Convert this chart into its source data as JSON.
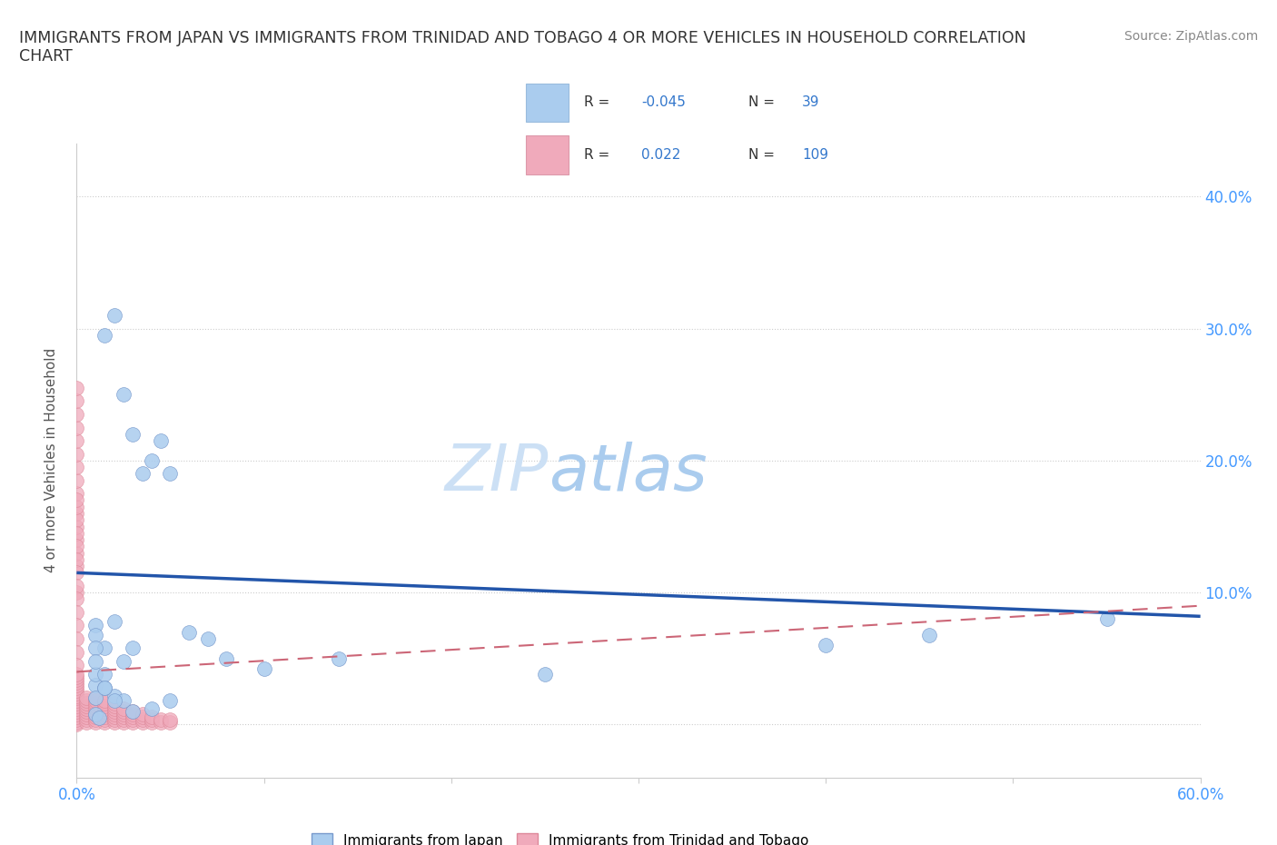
{
  "title": "IMMIGRANTS FROM JAPAN VS IMMIGRANTS FROM TRINIDAD AND TOBAGO 4 OR MORE VEHICLES IN HOUSEHOLD CORRELATION\nCHART",
  "source_text": "Source: ZipAtlas.com",
  "ylabel": "4 or more Vehicles in Household",
  "xlim": [
    0.0,
    0.6
  ],
  "ylim": [
    -0.04,
    0.44
  ],
  "R_japan": -0.045,
  "N_japan": 39,
  "R_tt": 0.022,
  "N_tt": 109,
  "color_japan": "#aaccee",
  "color_tt": "#f0aabb",
  "line_color_japan": "#2255aa",
  "line_color_tt": "#cc6677",
  "watermark_zip": "ZIP",
  "watermark_atlas": "atlas",
  "japan_x": [
    0.01,
    0.015,
    0.02,
    0.025,
    0.03,
    0.035,
    0.04,
    0.045,
    0.05,
    0.06,
    0.07,
    0.08,
    0.1,
    0.14,
    0.01,
    0.02,
    0.025,
    0.03,
    0.04,
    0.05,
    0.01,
    0.015,
    0.02,
    0.025,
    0.01,
    0.015,
    0.02,
    0.01,
    0.012,
    0.25,
    0.01,
    0.4,
    0.55,
    0.455,
    0.03,
    0.01,
    0.015,
    0.01,
    0.015
  ],
  "japan_y": [
    0.075,
    0.295,
    0.31,
    0.25,
    0.22,
    0.19,
    0.2,
    0.215,
    0.19,
    0.07,
    0.065,
    0.05,
    0.042,
    0.05,
    0.03,
    0.022,
    0.018,
    0.01,
    0.012,
    0.018,
    0.068,
    0.058,
    0.078,
    0.048,
    0.038,
    0.028,
    0.018,
    0.008,
    0.005,
    0.038,
    0.058,
    0.06,
    0.08,
    0.068,
    0.058,
    0.048,
    0.038,
    0.02,
    0.028
  ],
  "tt_x_raw": [
    0.0,
    0.0,
    0.0,
    0.0,
    0.0,
    0.0,
    0.0,
    0.0,
    0.0,
    0.0,
    0.0,
    0.0,
    0.0,
    0.0,
    0.0,
    0.0,
    0.0,
    0.0,
    0.0,
    0.0,
    0.005,
    0.005,
    0.005,
    0.005,
    0.005,
    0.005,
    0.005,
    0.005,
    0.005,
    0.005,
    0.01,
    0.01,
    0.01,
    0.01,
    0.01,
    0.01,
    0.01,
    0.01,
    0.01,
    0.01,
    0.015,
    0.015,
    0.015,
    0.015,
    0.015,
    0.015,
    0.015,
    0.015,
    0.015,
    0.02,
    0.02,
    0.02,
    0.02,
    0.02,
    0.02,
    0.02,
    0.02,
    0.025,
    0.025,
    0.025,
    0.025,
    0.025,
    0.025,
    0.03,
    0.03,
    0.03,
    0.03,
    0.03,
    0.035,
    0.035,
    0.035,
    0.035,
    0.04,
    0.04,
    0.04,
    0.045,
    0.045,
    0.05,
    0.05,
    0.0,
    0.0,
    0.0,
    0.0,
    0.0,
    0.0,
    0.0,
    0.0,
    0.0,
    0.0,
    0.0,
    0.0,
    0.0,
    0.0,
    0.0,
    0.0,
    0.0,
    0.0,
    0.0,
    0.0,
    0.0,
    0.0,
    0.0,
    0.0,
    0.0,
    0.0,
    0.0,
    0.0,
    0.0
  ],
  "tt_y_raw": [
    0.0,
    0.002,
    0.004,
    0.006,
    0.008,
    0.01,
    0.012,
    0.014,
    0.016,
    0.018,
    0.02,
    0.022,
    0.024,
    0.026,
    0.028,
    0.03,
    0.032,
    0.034,
    0.036,
    0.038,
    0.002,
    0.004,
    0.006,
    0.008,
    0.01,
    0.012,
    0.014,
    0.016,
    0.018,
    0.02,
    0.002,
    0.004,
    0.006,
    0.008,
    0.01,
    0.012,
    0.014,
    0.016,
    0.018,
    0.02,
    0.002,
    0.004,
    0.006,
    0.008,
    0.01,
    0.012,
    0.014,
    0.016,
    0.018,
    0.002,
    0.004,
    0.006,
    0.008,
    0.01,
    0.012,
    0.014,
    0.016,
    0.002,
    0.004,
    0.006,
    0.008,
    0.01,
    0.012,
    0.002,
    0.004,
    0.006,
    0.008,
    0.01,
    0.002,
    0.004,
    0.006,
    0.008,
    0.002,
    0.004,
    0.006,
    0.002,
    0.004,
    0.002,
    0.004,
    0.1,
    0.12,
    0.13,
    0.14,
    0.15,
    0.16,
    0.155,
    0.145,
    0.135,
    0.125,
    0.165,
    0.175,
    0.115,
    0.105,
    0.095,
    0.085,
    0.075,
    0.065,
    0.055,
    0.045,
    0.185,
    0.195,
    0.205,
    0.215,
    0.225,
    0.235,
    0.245,
    0.255,
    0.17
  ]
}
